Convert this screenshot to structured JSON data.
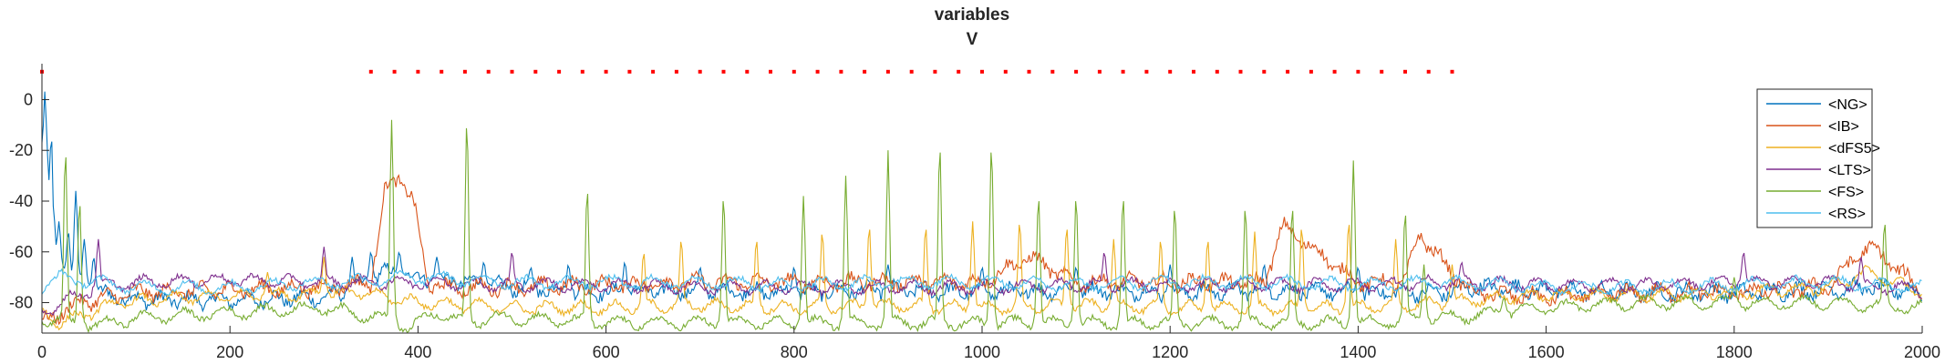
{
  "chart_data": {
    "type": "line",
    "title": "variables",
    "subtitle": "V",
    "xlabel": "",
    "ylabel": "",
    "xlim": [
      0,
      2000
    ],
    "ylim": [
      -92,
      12
    ],
    "xticks": [
      0,
      200,
      400,
      600,
      800,
      1000,
      1200,
      1400,
      1600,
      1800,
      2000
    ],
    "yticks": [
      0,
      -20,
      -40,
      -60,
      -80
    ],
    "grid": false,
    "legend_position": "top-right",
    "series": [
      {
        "name": "<NG>",
        "color": "#0072BD",
        "x": [
          0,
          2,
          10,
          20,
          40,
          60,
          80,
          120,
          200,
          300,
          340,
          360,
          400,
          450,
          500,
          600,
          700,
          800,
          900,
          1000,
          1100,
          1200,
          1300,
          1400,
          1500,
          1520,
          1600,
          1700,
          1800,
          1900,
          1940,
          2000
        ],
        "y": [
          -70,
          10,
          -60,
          -68,
          -72,
          -76,
          -78,
          -79,
          -79,
          -78,
          -74,
          -68,
          -70,
          -72,
          -74,
          -76,
          -75,
          -76,
          -75,
          -76,
          -75,
          -76,
          -75,
          -76,
          -76,
          -74,
          -75,
          -76,
          -76,
          -75,
          -74,
          -76
        ]
      },
      {
        "name": "<IB>",
        "color": "#D95319",
        "x": [
          0,
          10,
          40,
          70,
          100,
          200,
          300,
          350,
          365,
          380,
          395,
          410,
          430,
          500,
          600,
          700,
          800,
          900,
          1000,
          1050,
          1100,
          1200,
          1300,
          1320,
          1400,
          1450,
          1465,
          1480,
          1520,
          1600,
          1700,
          1800,
          1900,
          1940,
          1960,
          2000
        ],
        "y": [
          -88,
          -86,
          -80,
          -78,
          -76,
          -75,
          -74,
          -72,
          -36,
          -30,
          -40,
          -72,
          -74,
          -74,
          -73,
          -72,
          -72,
          -72,
          -72,
          -62,
          -72,
          -72,
          -72,
          -50,
          -72,
          -72,
          -52,
          -60,
          -76,
          -78,
          -76,
          -76,
          -74,
          -58,
          -62,
          -76
        ]
      },
      {
        "name": "<dFS5>",
        "color": "#EDB120",
        "x": [
          0,
          20,
          50,
          80,
          150,
          250,
          340,
          400,
          500,
          600,
          700,
          800,
          900,
          1000,
          1100,
          1200,
          1300,
          1400,
          1500,
          1550,
          1600,
          1700,
          1800,
          1900,
          1940,
          2000
        ],
        "y": [
          -84,
          -88,
          -84,
          -80,
          -78,
          -77,
          -76,
          -80,
          -82,
          -82,
          -81,
          -82,
          -81,
          -82,
          -81,
          -82,
          -82,
          -82,
          -80,
          -78,
          -77,
          -77,
          -76,
          -74,
          -68,
          -76
        ]
      },
      {
        "name": "<LTS>",
        "color": "#7E2F8E",
        "x": [
          0,
          20,
          60,
          100,
          200,
          300,
          400,
          500,
          600,
          700,
          800,
          900,
          1000,
          1100,
          1200,
          1300,
          1400,
          1500,
          1600,
          1700,
          1800,
          1900,
          2000
        ],
        "y": [
          -84,
          -80,
          -74,
          -72,
          -71,
          -72,
          -72,
          -73,
          -73,
          -74,
          -74,
          -74,
          -74,
          -73,
          -73,
          -73,
          -73,
          -72,
          -73,
          -73,
          -72,
          -72,
          -75
        ]
      },
      {
        "name": "<FS>",
        "color": "#77AC30",
        "x": [
          0,
          30,
          60,
          100,
          200,
          300,
          360,
          390,
          420,
          450,
          480,
          500,
          600,
          700,
          800,
          900,
          1000,
          1100,
          1200,
          1300,
          1400,
          1500,
          1550,
          1600,
          1700,
          1800,
          1900,
          2000
        ],
        "y": [
          -86,
          -88,
          -89,
          -86,
          -84,
          -82,
          -86,
          -90,
          -84,
          -88,
          -86,
          -86,
          -88,
          -88,
          -88,
          -88,
          -88,
          -88,
          -88,
          -88,
          -88,
          -86,
          -84,
          -82,
          -80,
          -80,
          -80,
          -82
        ]
      },
      {
        "name": "<RS>",
        "color": "#4DBEEE",
        "x": [
          0,
          20,
          60,
          100,
          200,
          300,
          400,
          500,
          600,
          700,
          800,
          900,
          1000,
          1100,
          1200,
          1300,
          1400,
          1500,
          1600,
          1700,
          1800,
          1900,
          2000
        ],
        "y": [
          -74,
          -70,
          -72,
          -74,
          -74,
          -72,
          -70,
          -72,
          -72,
          -72,
          -73,
          -72,
          -72,
          -73,
          -72,
          -72,
          -73,
          -72,
          -74,
          -74,
          -73,
          -72,
          -74
        ]
      }
    ],
    "spikes": [
      {
        "series": "<FS>",
        "x": [
          25,
          40,
          372,
          452,
          580,
          725,
          810,
          855,
          900,
          955,
          1010,
          1060,
          1100,
          1150,
          1205,
          1280,
          1330,
          1395,
          1450,
          1470,
          1555,
          1800,
          1960
        ],
        "y": [
          -20,
          -40,
          -8,
          -8,
          -35,
          -38,
          -38,
          -30,
          -20,
          -18,
          -18,
          -38,
          -38,
          -38,
          -42,
          -42,
          -42,
          -24,
          -44,
          -65,
          -78,
          -70,
          -48
        ]
      },
      {
        "series": "<dFS5>",
        "x": [
          240,
          300,
          640,
          680,
          760,
          830,
          880,
          940,
          990,
          1040,
          1090,
          1140,
          1190,
          1240,
          1290,
          1340,
          1390,
          1440,
          1500
        ],
        "y": [
          -68,
          -62,
          -60,
          -55,
          -55,
          -52,
          -50,
          -50,
          -48,
          -48,
          -50,
          -55,
          -55,
          -55,
          -52,
          -50,
          -48,
          -55,
          -65
        ]
      },
      {
        "series": "<NG>",
        "x": [
          5,
          12,
          18,
          28,
          36,
          45,
          55,
          330,
          350,
          380,
          420,
          470,
          520,
          560,
          620,
          700,
          800,
          900,
          1000,
          1100,
          1200,
          1300,
          1400
        ],
        "y": [
          -60,
          -42,
          -48,
          -52,
          -36,
          -55,
          -62,
          -62,
          -60,
          -60,
          -62,
          -64,
          -66,
          -65,
          -64,
          -66,
          -66,
          -65,
          -66,
          -66,
          -65,
          -65,
          -66
        ]
      },
      {
        "series": "<LTS>",
        "x": [
          60,
          300,
          500,
          1130,
          1510,
          1810,
          1935
        ],
        "y": [
          -55,
          -58,
          -60,
          -60,
          -64,
          -60,
          -62
        ]
      }
    ],
    "markers": {
      "color": "#FF0000",
      "y": 11,
      "x": [
        0,
        350,
        375,
        400,
        425,
        450,
        475,
        500,
        525,
        550,
        575,
        600,
        625,
        650,
        675,
        700,
        725,
        750,
        775,
        800,
        825,
        850,
        875,
        900,
        925,
        950,
        975,
        1000,
        1025,
        1050,
        1075,
        1100,
        1125,
        1150,
        1175,
        1200,
        1225,
        1250,
        1275,
        1300,
        1325,
        1350,
        1375,
        1400,
        1425,
        1450,
        1475,
        1500
      ]
    }
  }
}
